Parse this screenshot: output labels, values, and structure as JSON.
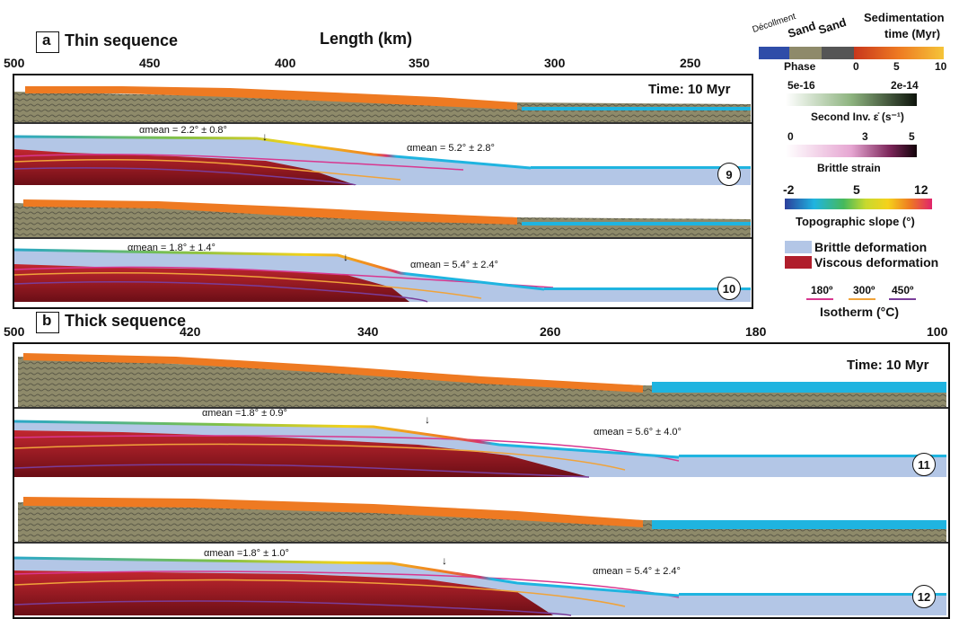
{
  "panel_a": {
    "letter": "a",
    "title": "Thin sequence",
    "axis_title": "Length (km)",
    "axis_ticks": [
      "500",
      "450",
      "400",
      "350",
      "300",
      "250"
    ],
    "time_label": "Time: 10 Myr",
    "models": [
      {
        "id": "9",
        "alpha_left": "αmean = 2.2° ± 0.8°",
        "alpha_right": "αmean = 5.2° ± 2.8°"
      },
      {
        "id": "10",
        "alpha_left": "αmean = 1.8° ± 1.4°",
        "alpha_right": "αmean = 5.4° ± 2.4°"
      }
    ]
  },
  "panel_b": {
    "letter": "b",
    "title": "Thick sequence",
    "axis_ticks": [
      "500",
      "420",
      "340",
      "260",
      "180",
      "100"
    ],
    "time_label": "Time: 10 Myr",
    "models": [
      {
        "id": "11",
        "alpha_left": "αmean =1.8° ± 0.9°",
        "alpha_right": "αmean = 5.6° ± 4.0°"
      },
      {
        "id": "12",
        "alpha_left": "αmean =1.8° ± 1.0°",
        "alpha_right": "αmean = 5.4° ± 2.4°"
      }
    ]
  },
  "legend": {
    "phase": {
      "labels": [
        "Décollment",
        "Sand",
        "Sand"
      ],
      "title": "Phase"
    },
    "sedimentation": {
      "title_line1": "Sedimentation",
      "title_line2": "time (Myr)",
      "ticks": [
        "0",
        "5",
        "10"
      ]
    },
    "strain_rate": {
      "min": "5e-16",
      "max": "2e-14",
      "title": "Second Inv. ε̇ (s⁻¹)"
    },
    "brittle_strain": {
      "ticks": [
        "0",
        "3",
        "5"
      ],
      "title": "Brittle strain"
    },
    "slope": {
      "ticks": [
        "-2",
        "5",
        "12"
      ],
      "title": "Topographic slope (°)"
    },
    "deformation": [
      {
        "label": "Brittle deformation",
        "color": "#b3c6e6"
      },
      {
        "label": "Viscous deformation",
        "color": "#b01e2c"
      }
    ],
    "isotherms": {
      "items": [
        {
          "label": "180º",
          "color": "#d8378f"
        },
        {
          "label": "300º",
          "color": "#f0a33a"
        },
        {
          "label": "450º",
          "color": "#7a3d9a"
        }
      ],
      "title": "Isotherm (°C)"
    }
  },
  "colors": {
    "sand_olive": "#8e8a6a",
    "sed_orange": "#ee7a22",
    "cyan": "#1fb4e0",
    "brittle": "#b3c6e6",
    "viscous": "#b01e2c"
  }
}
